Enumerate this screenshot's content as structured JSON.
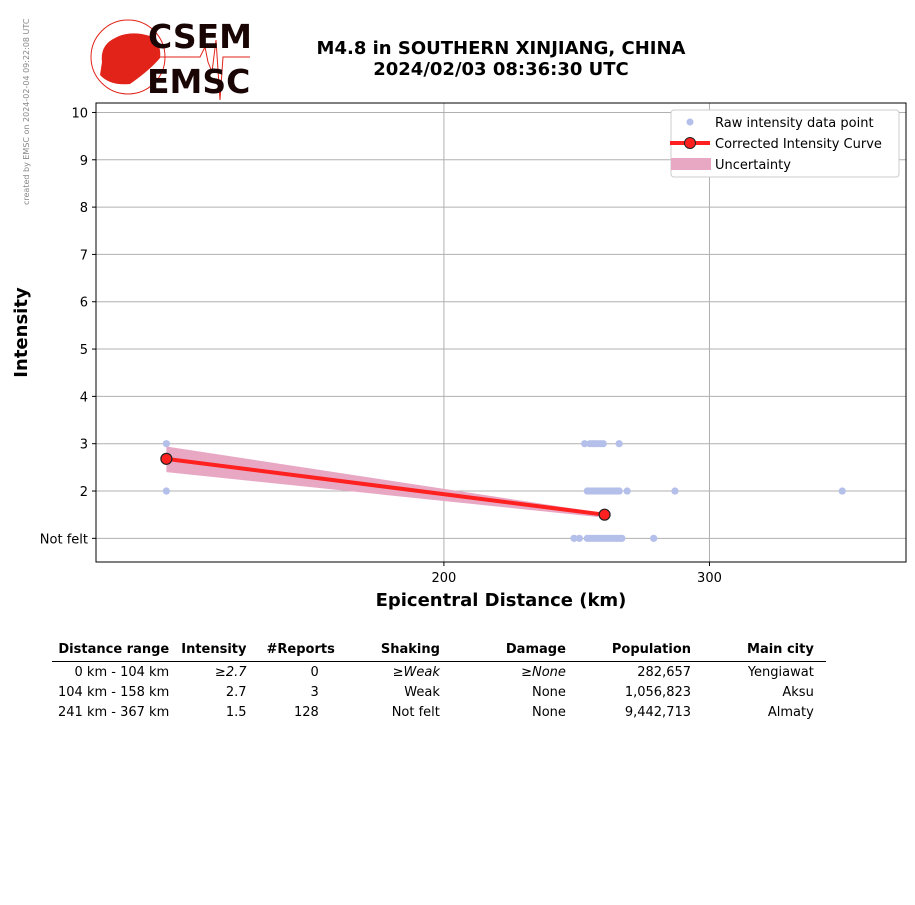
{
  "credit": "created by EMSC on 2024-02-04 09:22:08 UTC",
  "logo": {
    "top": "CSEM",
    "bottom": "EMSC"
  },
  "title_line1": "M4.8 in SOUTHERN XINJIANG, CHINA",
  "title_line2": "2024/02/03 08:36:30 UTC",
  "colors": {
    "raw": "#b4bfea",
    "curve": "#ff2020",
    "uncertainty": "#e8a8c4",
    "logo": "#e2231a"
  },
  "chart_data": {
    "type": "scatter",
    "xlabel": "Epicentral Distance (km)",
    "ylabel": "Intensity",
    "xlim": [
      69,
      374
    ],
    "ylim": [
      0.5,
      10.2
    ],
    "xticks": [
      200,
      300
    ],
    "yticks": [
      {
        "v": 1,
        "label": "Not felt"
      },
      {
        "v": 2,
        "label": "2"
      },
      {
        "v": 3,
        "label": "3"
      },
      {
        "v": 4,
        "label": "4"
      },
      {
        "v": 5,
        "label": "5"
      },
      {
        "v": 6,
        "label": "6"
      },
      {
        "v": 7,
        "label": "7"
      },
      {
        "v": 8,
        "label": "8"
      },
      {
        "v": 9,
        "label": "9"
      },
      {
        "v": 10,
        "label": "10"
      }
    ],
    "grid": true,
    "legend_position": "top-right",
    "legend": [
      "Raw intensity data point",
      "Corrected Intensity Curve",
      "Uncertainty"
    ],
    "raw_points": [
      [
        95.5,
        3
      ],
      [
        253,
        3
      ],
      [
        255,
        3
      ],
      [
        256,
        3
      ],
      [
        257,
        3
      ],
      [
        258,
        3
      ],
      [
        259,
        3
      ],
      [
        260,
        3
      ],
      [
        266,
        3
      ],
      [
        95.5,
        2
      ],
      [
        254,
        2
      ],
      [
        255,
        2
      ],
      [
        256,
        2
      ],
      [
        257,
        2
      ],
      [
        258,
        2
      ],
      [
        259,
        2
      ],
      [
        260,
        2
      ],
      [
        261,
        2
      ],
      [
        262,
        2
      ],
      [
        263,
        2
      ],
      [
        264,
        2
      ],
      [
        265,
        2
      ],
      [
        266,
        2
      ],
      [
        269,
        2
      ],
      [
        287,
        2
      ],
      [
        350,
        2
      ],
      [
        249,
        1
      ],
      [
        251,
        1
      ],
      [
        254,
        1
      ],
      [
        255,
        1
      ],
      [
        256,
        1
      ],
      [
        257,
        1
      ],
      [
        258,
        1
      ],
      [
        259,
        1
      ],
      [
        260,
        1
      ],
      [
        261,
        1
      ],
      [
        262,
        1
      ],
      [
        263,
        1
      ],
      [
        264,
        1
      ],
      [
        265,
        1
      ],
      [
        266,
        1
      ],
      [
        267,
        1
      ],
      [
        279,
        1
      ]
    ],
    "curve": [
      [
        95.5,
        2.68
      ],
      [
        260.5,
        1.5
      ]
    ],
    "uncertainty": {
      "x": [
        95.5,
        258
      ],
      "upper": [
        2.94,
        1.55
      ],
      "lower": [
        2.4,
        1.45
      ]
    }
  },
  "table": {
    "headers": [
      "Distance range",
      "Intensity",
      "#Reports",
      "Shaking",
      "Damage",
      "Population",
      "Main city"
    ],
    "rows": [
      [
        "0 km -  104 km",
        "≥2.7",
        "0",
        "≥Weak",
        "≥None",
        "282,657",
        "Yengiawat"
      ],
      [
        "104 km -  158 km",
        "2.7",
        "3",
        "Weak",
        "None",
        "1,056,823",
        "Aksu"
      ],
      [
        "241 km -  367 km",
        "1.5",
        "128",
        "Not felt",
        "None",
        "9,442,713",
        "Almaty"
      ]
    ]
  }
}
